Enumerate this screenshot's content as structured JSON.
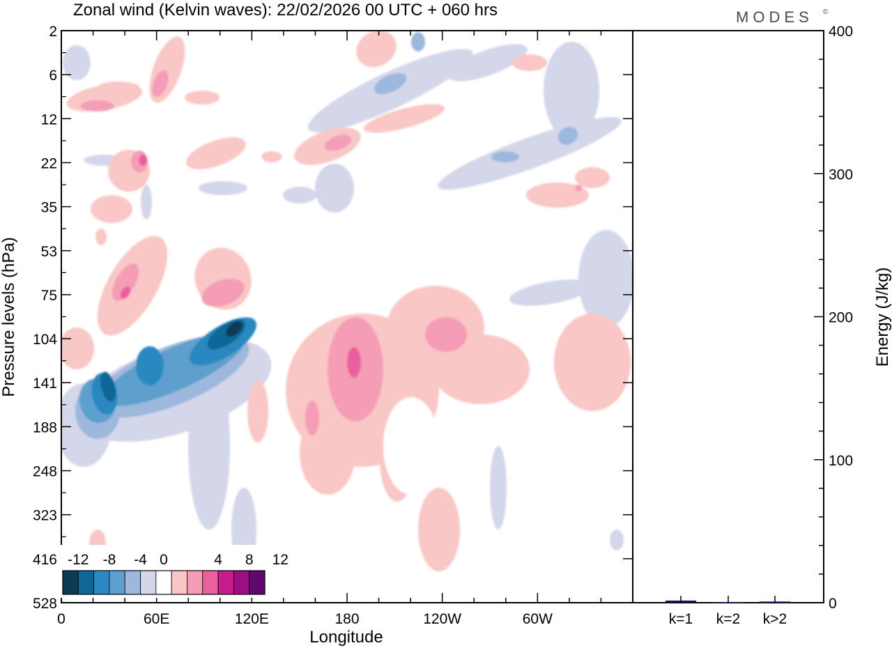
{
  "title": "Zonal wind (Kelvin waves):  22/02/2026  00 UTC  + 060 hrs",
  "brand": "MODES",
  "brand_mark": "©",
  "chart_data": [
    {
      "type": "heatmap",
      "description": "Longitude–pressure cross-section of Kelvin-wave zonal wind (filled contours)",
      "xlabel": "Longitude",
      "ylabel": "Pressure levels (hPa)",
      "x_ticks": [
        "0",
        "60E",
        "120E",
        "180",
        "120W",
        "60W"
      ],
      "x_tick_values": [
        0,
        60,
        120,
        180,
        240,
        300
      ],
      "xlim": [
        0,
        360
      ],
      "y_ticks": [
        "2",
        "6",
        "12",
        "22",
        "35",
        "53",
        "75",
        "104",
        "141",
        "188",
        "248",
        "323",
        "416",
        "528"
      ],
      "colorbar": {
        "labels": [
          "-12",
          "-8",
          "-4",
          "0",
          "4",
          "8",
          "12"
        ],
        "levels": [
          -14,
          -12,
          -10,
          -8,
          -6,
          -4,
          -2,
          2,
          4,
          6,
          8,
          10,
          12,
          14
        ],
        "colors": [
          "#0c3a52",
          "#106898",
          "#2b88c0",
          "#5d9fcd",
          "#9db8dc",
          "#d4d6ea",
          "#ffffff",
          "#f9c7c5",
          "#f59db7",
          "#eb5f9f",
          "#c91c8c",
          "#9b1080",
          "#61086f"
        ]
      },
      "features": [
        {
          "name": "negative core near 105E",
          "lon": 105,
          "level": 104,
          "value": -14
        },
        {
          "name": "negative core near 30E",
          "lon": 30,
          "level": 141,
          "value": -10
        },
        {
          "name": "positive core near 185E",
          "lon": 185,
          "level": 116,
          "value": 8
        },
        {
          "name": "positive core near 40E",
          "lon": 40,
          "level": 75,
          "value": 8
        },
        {
          "name": "positive core near 50E",
          "lon": 50,
          "level": 22,
          "value": 8
        }
      ]
    },
    {
      "type": "bar",
      "ylabel": "Energy (J/kg)",
      "categories": [
        "k=1",
        "k=2",
        "k>2"
      ],
      "values": [
        1.5,
        0.5,
        0.8
      ],
      "ylim": [
        0,
        400
      ],
      "y_ticks": [
        "0",
        "100",
        "200",
        "300",
        "400"
      ],
      "bar_color": "#15154f"
    }
  ]
}
